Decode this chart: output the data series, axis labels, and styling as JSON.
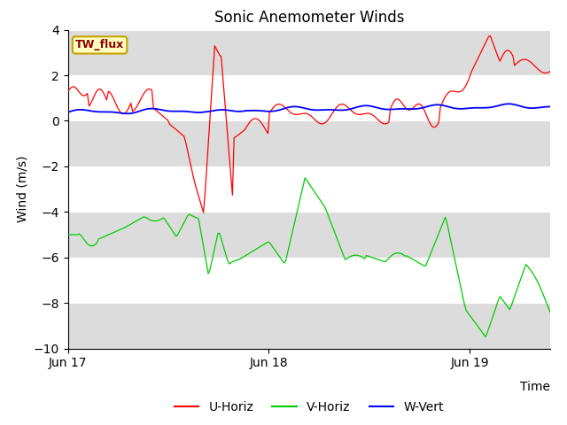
{
  "title": "Sonic Anemometer Winds",
  "xlabel": "Time",
  "ylabel": "Wind (m/s)",
  "ylim": [
    -10,
    4
  ],
  "yticks": [
    -10,
    -8,
    -6,
    -4,
    -2,
    0,
    2,
    4
  ],
  "x_tick_labels": [
    "Jun 17",
    "Jun 18",
    "Jun 19"
  ],
  "annotation_text": "TW_flux",
  "annotation_color": "#8B0000",
  "annotation_bg": "#FFFFC0",
  "annotation_border": "#C8A000",
  "line_colors": {
    "U": "#FF0000",
    "V": "#00CC00",
    "W": "#0000FF"
  },
  "legend_labels": [
    "U-Horiz",
    "V-Horiz",
    "W-Vert"
  ],
  "bg_band_color": "#DCDCDC"
}
